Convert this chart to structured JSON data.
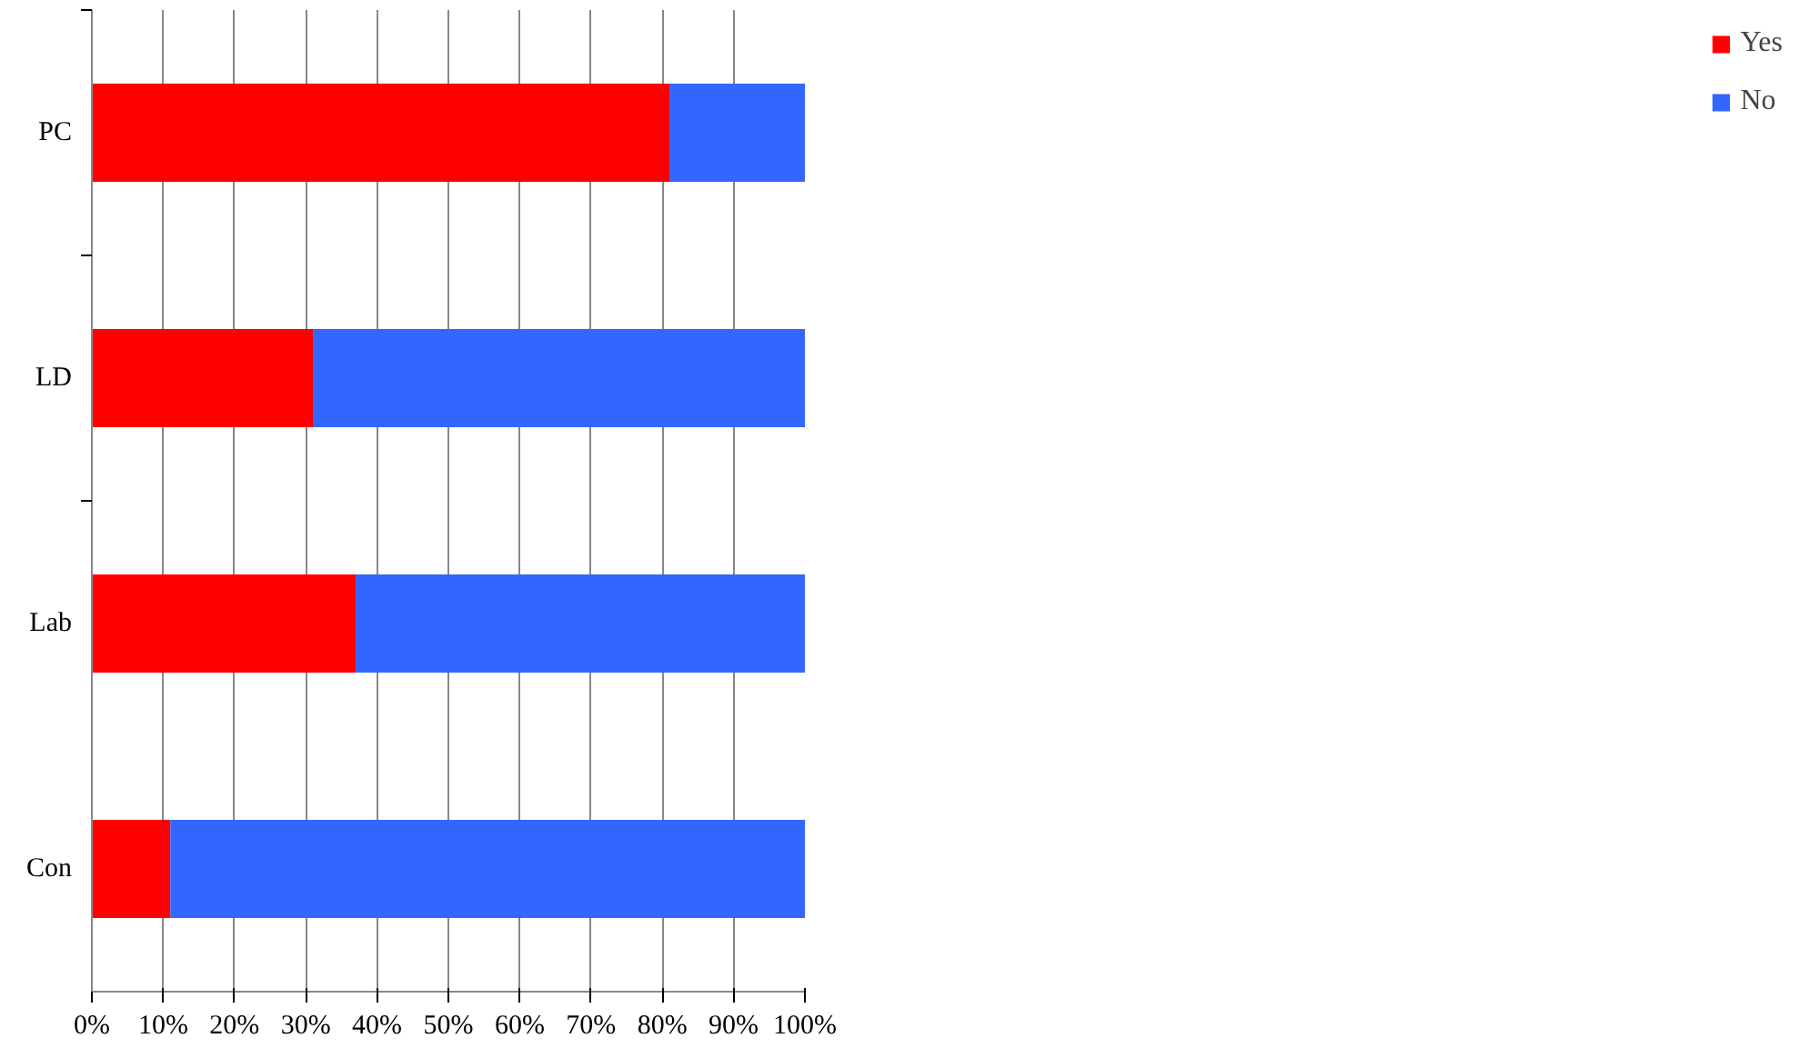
{
  "chart_data": {
    "type": "bar",
    "orientation": "horizontal",
    "stacked": true,
    "categories": [
      "PC",
      "LD",
      "Lab",
      "Con"
    ],
    "series": [
      {
        "name": "Yes",
        "color": "#ff0000",
        "values": [
          81,
          31,
          37,
          11
        ]
      },
      {
        "name": "No",
        "color": "#3366ff",
        "values": [
          19,
          69,
          63,
          89
        ]
      }
    ],
    "xlim": [
      0,
      100
    ],
    "xticks": [
      {
        "value": 0,
        "label": "0%"
      },
      {
        "value": 10,
        "label": "10%"
      },
      {
        "value": 20,
        "label": "20%"
      },
      {
        "value": 30,
        "label": "30%"
      },
      {
        "value": 40,
        "label": "40%"
      },
      {
        "value": 50,
        "label": "50%"
      },
      {
        "value": 60,
        "label": "60%"
      },
      {
        "value": 70,
        "label": "70%"
      },
      {
        "value": 80,
        "label": "80%"
      },
      {
        "value": 90,
        "label": "90%"
      },
      {
        "value": 100,
        "label": "100%"
      }
    ],
    "grid": "x",
    "legend": "right"
  }
}
